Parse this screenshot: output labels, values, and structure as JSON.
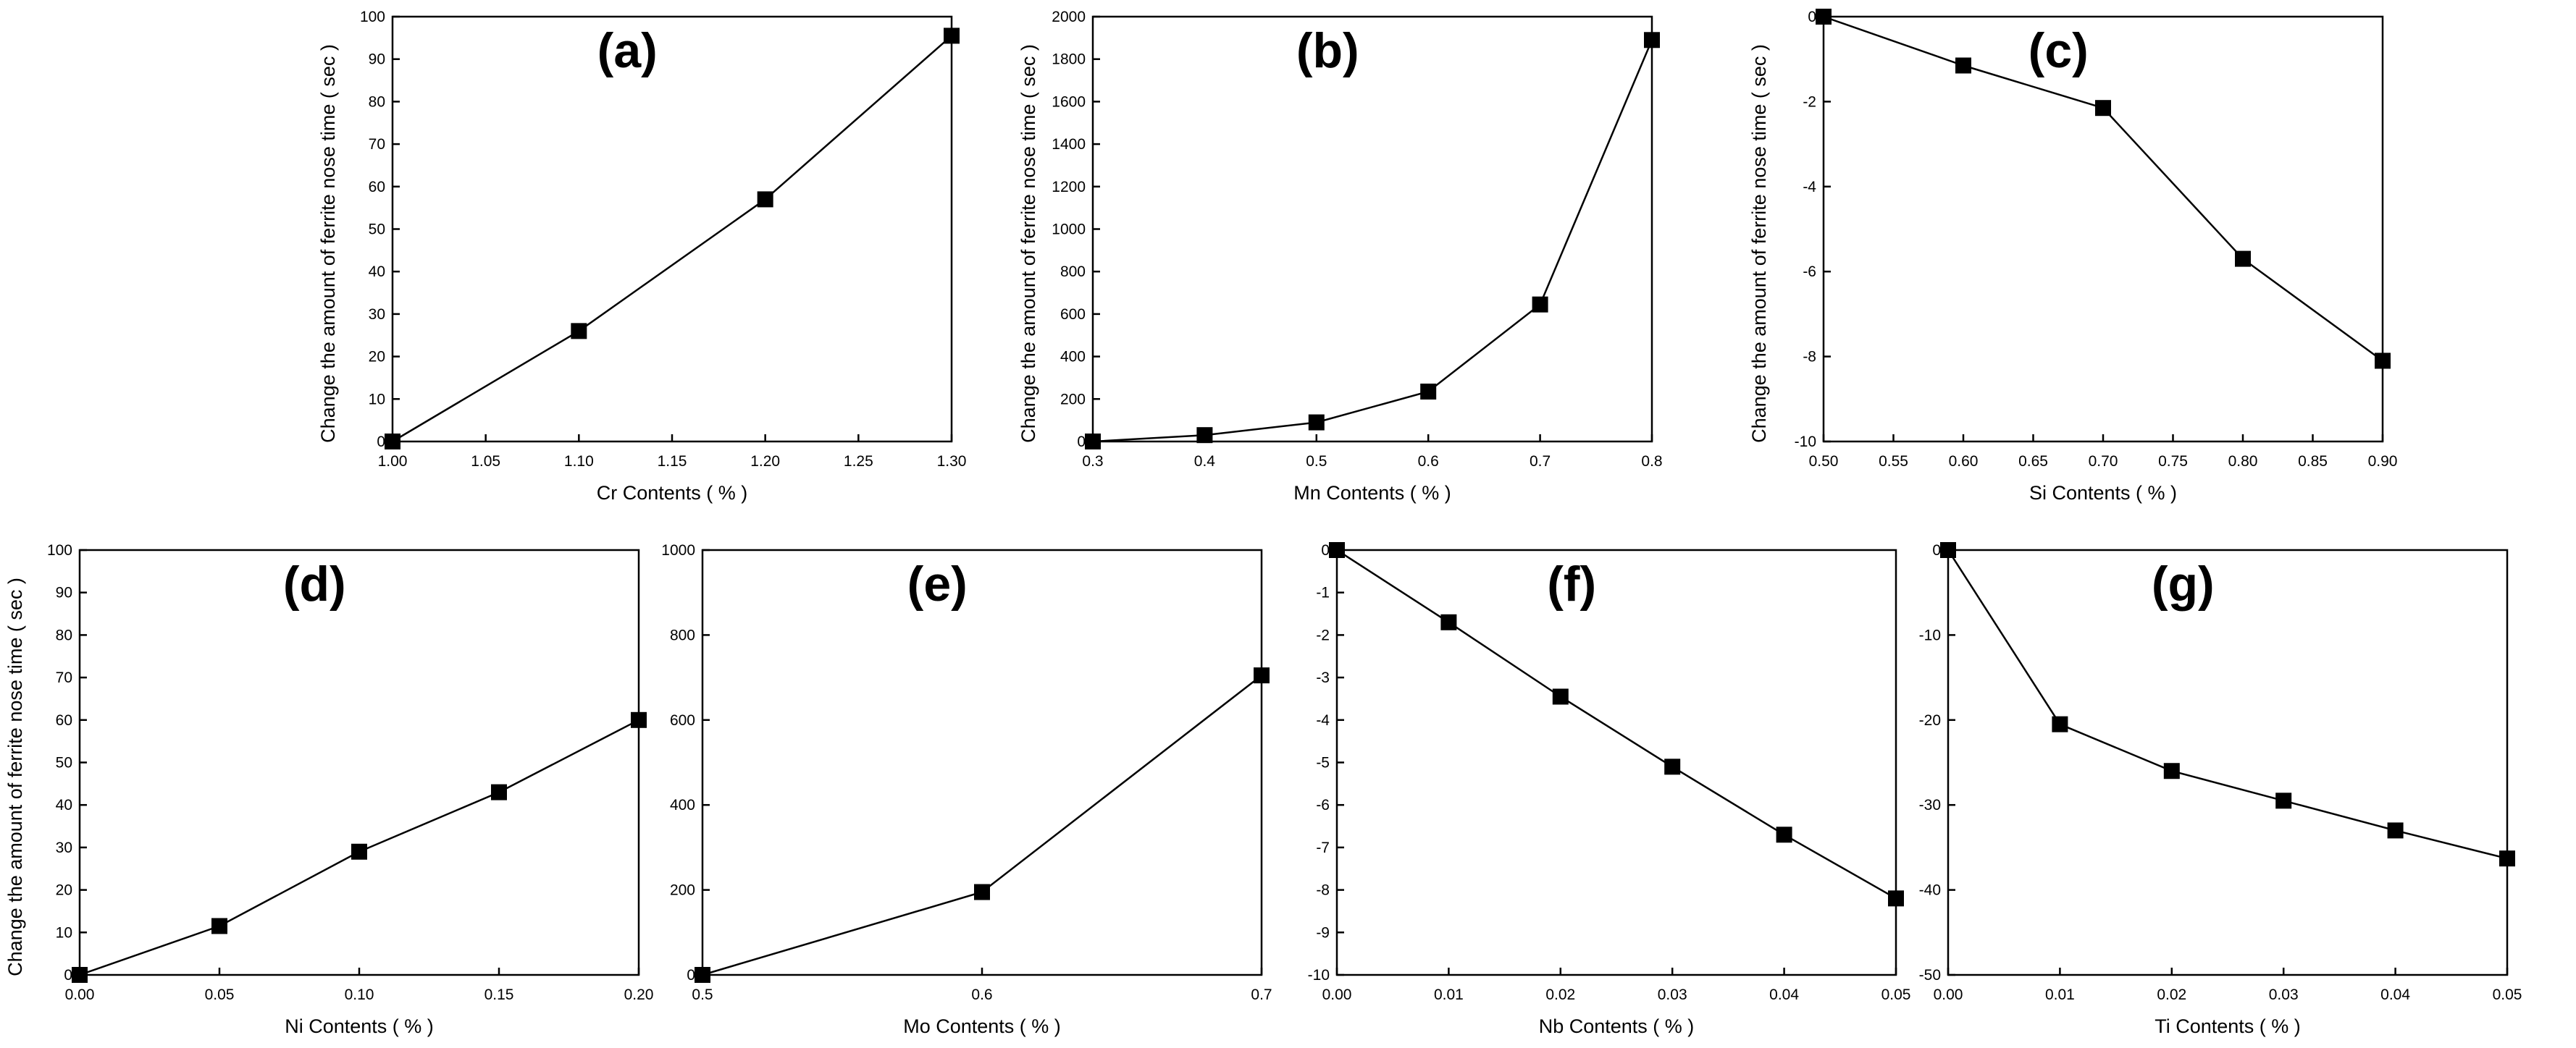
{
  "figure": {
    "y_axis_label": "Change the amount of ferrite nose time ( sec )"
  },
  "chart_data": [
    {
      "type": "line",
      "title": "(a)",
      "xlabel": "Cr Contents ( % )",
      "ylabel": "Change the amount of ferrite nose time ( sec )",
      "x": [
        1.0,
        1.1,
        1.2,
        1.3
      ],
      "y": [
        0,
        26,
        57,
        95.5
      ],
      "xlim": [
        1.0,
        1.3
      ],
      "ylim": [
        0,
        100
      ],
      "xticks": [
        1.0,
        1.05,
        1.1,
        1.15,
        1.2,
        1.25,
        1.3
      ],
      "xtick_labels": [
        "1.00",
        "1.05",
        "1.10",
        "1.15",
        "1.20",
        "1.25",
        "1.30"
      ],
      "yticks": [
        0,
        10,
        20,
        30,
        40,
        50,
        60,
        70,
        80,
        90,
        100
      ],
      "ytick_labels": [
        "0",
        "10",
        "20",
        "30",
        "40",
        "50",
        "60",
        "70",
        "80",
        "90",
        "100"
      ],
      "grid": false
    },
    {
      "type": "line",
      "title": "(b)",
      "xlabel": "Mn Contents ( % )",
      "ylabel": "Change the amount of ferrite nose time ( sec )",
      "x": [
        0.3,
        0.4,
        0.5,
        0.6,
        0.7,
        0.8
      ],
      "y": [
        0,
        30,
        90,
        235,
        645,
        1890
      ],
      "xlim": [
        0.3,
        0.8
      ],
      "ylim": [
        0,
        2000
      ],
      "xticks": [
        0.3,
        0.4,
        0.5,
        0.6,
        0.7,
        0.8
      ],
      "xtick_labels": [
        "0.3",
        "0.4",
        "0.5",
        "0.6",
        "0.7",
        "0.8"
      ],
      "yticks": [
        0,
        200,
        400,
        600,
        800,
        1000,
        1200,
        1400,
        1600,
        1800,
        2000
      ],
      "ytick_labels": [
        "0",
        "200",
        "400",
        "600",
        "800",
        "1000",
        "1200",
        "1400",
        "1600",
        "1800",
        "2000"
      ],
      "grid": false
    },
    {
      "type": "line",
      "title": "(c)",
      "xlabel": "Si Contents ( % )",
      "ylabel": "Change the amount of ferrite nose time ( sec )",
      "x": [
        0.5,
        0.6,
        0.7,
        0.8,
        0.9
      ],
      "y": [
        0,
        -1.15,
        -2.15,
        -5.7,
        -8.1
      ],
      "xlim": [
        0.5,
        0.9
      ],
      "ylim": [
        -10,
        0
      ],
      "xticks": [
        0.5,
        0.55,
        0.6,
        0.65,
        0.7,
        0.75,
        0.8,
        0.85,
        0.9
      ],
      "xtick_labels": [
        "0.50",
        "0.55",
        "0.60",
        "0.65",
        "0.70",
        "0.75",
        "0.80",
        "0.85",
        "0.90"
      ],
      "yticks": [
        0,
        -2,
        -4,
        -6,
        -8,
        -10
      ],
      "ytick_labels": [
        "0",
        "-2",
        "-4",
        "-6",
        "-8",
        "-10"
      ],
      "grid": false
    },
    {
      "type": "line",
      "title": "(d)",
      "xlabel": "Ni Contents ( % )",
      "ylabel": "Change the amount of ferrite nose time ( sec )",
      "x": [
        0.0,
        0.05,
        0.1,
        0.15,
        0.2
      ],
      "y": [
        0,
        11.5,
        29,
        43,
        60
      ],
      "xlim": [
        0.0,
        0.2
      ],
      "ylim": [
        0,
        100
      ],
      "xticks": [
        0.0,
        0.05,
        0.1,
        0.15,
        0.2
      ],
      "xtick_labels": [
        "0.00",
        "0.05",
        "0.10",
        "0.15",
        "0.20"
      ],
      "yticks": [
        0,
        10,
        20,
        30,
        40,
        50,
        60,
        70,
        80,
        90,
        100
      ],
      "ytick_labels": [
        "0",
        "10",
        "20",
        "30",
        "40",
        "50",
        "60",
        "70",
        "80",
        "90",
        "100"
      ],
      "grid": false
    },
    {
      "type": "line",
      "title": "(e)",
      "xlabel": "Mo Contents ( % )",
      "ylabel": "",
      "x": [
        0.5,
        0.6,
        0.7
      ],
      "y": [
        0,
        195,
        705
      ],
      "xlim": [
        0.5,
        0.7
      ],
      "ylim": [
        0,
        1000
      ],
      "xticks": [
        0.5,
        0.6,
        0.7
      ],
      "xtick_labels": [
        "0.5",
        "0.6",
        "0.7"
      ],
      "yticks": [
        0,
        200,
        400,
        600,
        800,
        1000
      ],
      "ytick_labels": [
        "0",
        "200",
        "400",
        "600",
        "800",
        "1000"
      ],
      "grid": false
    },
    {
      "type": "line",
      "title": "(f)",
      "xlabel": "Nb Contents ( % )",
      "ylabel": "",
      "x": [
        0.0,
        0.01,
        0.02,
        0.03,
        0.04,
        0.05
      ],
      "y": [
        0,
        -1.7,
        -3.45,
        -5.1,
        -6.7,
        -8.2
      ],
      "xlim": [
        0.0,
        0.05
      ],
      "ylim": [
        -10,
        0
      ],
      "xticks": [
        0.0,
        0.01,
        0.02,
        0.03,
        0.04,
        0.05
      ],
      "xtick_labels": [
        "0.00",
        "0.01",
        "0.02",
        "0.03",
        "0.04",
        "0.05"
      ],
      "yticks": [
        0,
        -1,
        -2,
        -3,
        -4,
        -5,
        -6,
        -7,
        -8,
        -9,
        -10
      ],
      "ytick_labels": [
        "0",
        "-1",
        "-2",
        "-3",
        "-4",
        "-5",
        "-6",
        "-7",
        "-8",
        "-9",
        "-10"
      ],
      "grid": false
    },
    {
      "type": "line",
      "title": "(g)",
      "xlabel": "Ti Contents ( % )",
      "ylabel": "",
      "x": [
        0.0,
        0.01,
        0.02,
        0.03,
        0.04,
        0.05
      ],
      "y": [
        0,
        -20.5,
        -26,
        -29.5,
        -33,
        -36.3
      ],
      "xlim": [
        0.0,
        0.05
      ],
      "ylim": [
        -50,
        0
      ],
      "xticks": [
        0.0,
        0.01,
        0.02,
        0.03,
        0.04,
        0.05
      ],
      "xtick_labels": [
        "0.00",
        "0.01",
        "0.02",
        "0.03",
        "0.04",
        "0.05"
      ],
      "yticks": [
        0,
        -10,
        -20,
        -30,
        -40,
        -50
      ],
      "ytick_labels": [
        "0",
        "-10",
        "-20",
        "-30",
        "-40",
        "-50"
      ],
      "grid": false
    }
  ]
}
